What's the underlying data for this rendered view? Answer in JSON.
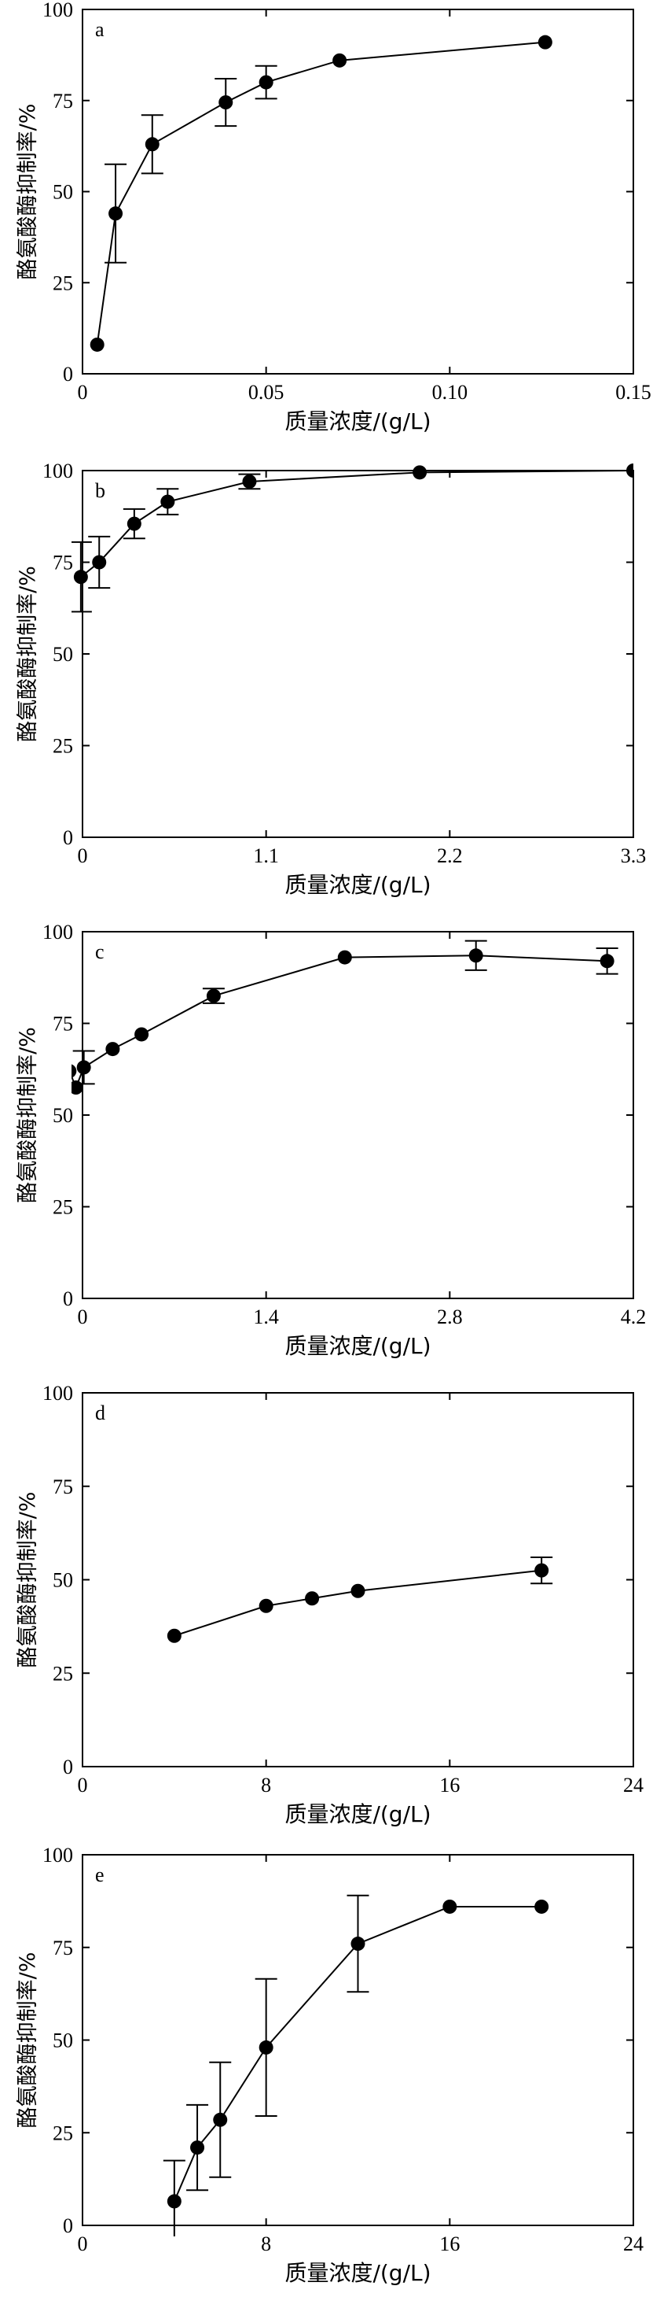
{
  "chart_data": [
    {
      "type": "line",
      "panel_label": "a",
      "xlabel": "质量浓度/(g/L)",
      "ylabel": "酪氨酸酶抑制率/%",
      "xlim": [
        0,
        0.15
      ],
      "ylim": [
        0,
        100
      ],
      "xticks": [
        0,
        0.05,
        0.1,
        0.15
      ],
      "xtick_labels": [
        "0",
        "0.05",
        "0.10",
        "0.15"
      ],
      "yticks": [
        0,
        25,
        50,
        75,
        100
      ],
      "ytick_labels": [
        "0",
        "25",
        "50",
        "75",
        "100"
      ],
      "legend": "none",
      "grid": false,
      "series": [
        {
          "x": [
            0.004,
            0.009,
            0.019,
            0.039,
            0.05,
            0.07,
            0.126
          ],
          "y": [
            8,
            44,
            63,
            74.5,
            80,
            86,
            91
          ],
          "error": [
            0,
            13.5,
            8,
            6.5,
            4.5,
            0,
            0
          ]
        }
      ]
    },
    {
      "type": "line",
      "panel_label": "b",
      "xlabel": "质量浓度/(g/L)",
      "ylabel": "酪氨酸酶抑制率/%",
      "xlim": [
        0,
        3.3
      ],
      "ylim": [
        0,
        100
      ],
      "xticks": [
        0,
        1.1,
        2.2,
        3.3
      ],
      "xtick_labels": [
        "0",
        "1.1",
        "2.2",
        "3.3"
      ],
      "yticks": [
        0,
        25,
        50,
        75,
        100
      ],
      "ytick_labels": [
        "0",
        "25",
        "50",
        "75",
        "100"
      ],
      "legend": "none",
      "grid": false,
      "series": [
        {
          "x": [
            -0.01,
            0.1,
            0.31,
            0.51,
            1.0,
            2.02,
            3.3
          ],
          "y": [
            71,
            75,
            85.5,
            91.5,
            97,
            99.5,
            100
          ],
          "error": [
            9.5,
            7,
            4,
            3.5,
            2,
            0,
            0
          ]
        }
      ]
    },
    {
      "type": "line",
      "panel_label": "c",
      "xlabel": "质量浓度/(g/L)",
      "ylabel": "酪氨酸酶抑制率/%",
      "xlim": [
        0,
        4.2
      ],
      "ylim": [
        0,
        100
      ],
      "xticks": [
        0,
        1.4,
        2.8,
        4.2
      ],
      "xtick_labels": [
        "0",
        "1.4",
        "2.8",
        "4.2"
      ],
      "yticks": [
        0,
        25,
        50,
        75,
        100
      ],
      "ytick_labels": [
        "0",
        "25",
        "50",
        "75",
        "100"
      ],
      "legend": "none",
      "grid": false,
      "series": [
        {
          "x": [
            -0.1,
            -0.05,
            0.01,
            0.23,
            0.45,
            1.0,
            2.0,
            3.0,
            4.0
          ],
          "y": [
            62,
            57.5,
            63,
            68,
            72,
            82.5,
            93,
            93.5,
            92
          ],
          "error": [
            0,
            0,
            4.5,
            0,
            0,
            2,
            0,
            4,
            3.5
          ]
        }
      ]
    },
    {
      "type": "line",
      "panel_label": "d",
      "xlabel": "质量浓度/(g/L)",
      "ylabel": "酪氨酸酶抑制率/%",
      "xlim": [
        0,
        24
      ],
      "ylim": [
        0,
        100
      ],
      "xticks": [
        0,
        8,
        16,
        24
      ],
      "xtick_labels": [
        "0",
        "8",
        "16",
        "24"
      ],
      "yticks": [
        0,
        25,
        50,
        75,
        100
      ],
      "ytick_labels": [
        "0",
        "25",
        "50",
        "75",
        "100"
      ],
      "legend": "none",
      "grid": false,
      "series": [
        {
          "x": [
            4,
            8,
            10,
            12,
            20
          ],
          "y": [
            35,
            43,
            45,
            47,
            52.5
          ],
          "error": [
            0,
            0,
            0,
            0,
            3.5
          ]
        }
      ]
    },
    {
      "type": "line",
      "panel_label": "e",
      "xlabel": "质量浓度/(g/L)",
      "ylabel": "酪氨酸酶抑制率/%",
      "xlim": [
        0,
        24
      ],
      "ylim": [
        0,
        100
      ],
      "xticks": [
        0,
        8,
        16,
        24
      ],
      "xtick_labels": [
        "0",
        "8",
        "16",
        "24"
      ],
      "yticks": [
        0,
        25,
        50,
        75,
        100
      ],
      "ytick_labels": [
        "0",
        "25",
        "50",
        "75",
        "100"
      ],
      "legend": "none",
      "grid": false,
      "series": [
        {
          "x": [
            4,
            5,
            6,
            8,
            12,
            16,
            20
          ],
          "y": [
            6.5,
            21,
            28.5,
            48,
            76,
            86,
            86
          ],
          "error": [
            11,
            11.5,
            15.5,
            18.5,
            13,
            0,
            0
          ]
        }
      ]
    }
  ],
  "style": {
    "line_color": "#000000",
    "marker_color": "#000000",
    "background": "#ffffff"
  }
}
